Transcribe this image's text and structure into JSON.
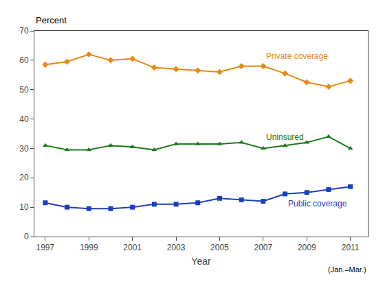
{
  "chart_data": {
    "type": "line",
    "xlabel": "Year",
    "ylabel": "Percent",
    "annotations": [
      "(Jan.–Mar.)"
    ],
    "x": [
      1997,
      1998,
      1999,
      2000,
      2001,
      2002,
      2003,
      2004,
      2005,
      2006,
      2007,
      2008,
      2009,
      2010,
      2011
    ],
    "series": [
      {
        "name": "Private coverage",
        "color": "#E8890C",
        "marker": "diamond",
        "values": [
          58.5,
          59.5,
          62.0,
          60.0,
          60.5,
          57.5,
          57.0,
          56.5,
          56.0,
          58.0,
          58.0,
          55.5,
          52.5,
          51.0,
          53.0
        ]
      },
      {
        "name": "Uninsured",
        "color": "#1A7A1A",
        "marker": "triangle-up",
        "values": [
          31.0,
          29.5,
          29.5,
          31.0,
          30.5,
          29.5,
          31.5,
          31.5,
          31.5,
          32.0,
          30.0,
          31.0,
          32.0,
          34.0,
          30.0
        ]
      },
      {
        "name": "Public coverage",
        "color": "#1A3EBF",
        "marker": "square",
        "values": [
          11.5,
          10.0,
          9.5,
          9.5,
          10.0,
          11.0,
          11.0,
          11.5,
          13.0,
          12.5,
          12.0,
          14.5,
          15.0,
          16.0,
          17.0
        ]
      }
    ],
    "xlim": [
      1996.5,
      2011.8
    ],
    "xticks": [
      1997,
      1999,
      2001,
      2003,
      2005,
      2007,
      2009,
      2011
    ],
    "ylim": [
      0,
      70
    ],
    "yticks": [
      0,
      10,
      20,
      30,
      40,
      50,
      60,
      70
    ],
    "grid": false
  }
}
